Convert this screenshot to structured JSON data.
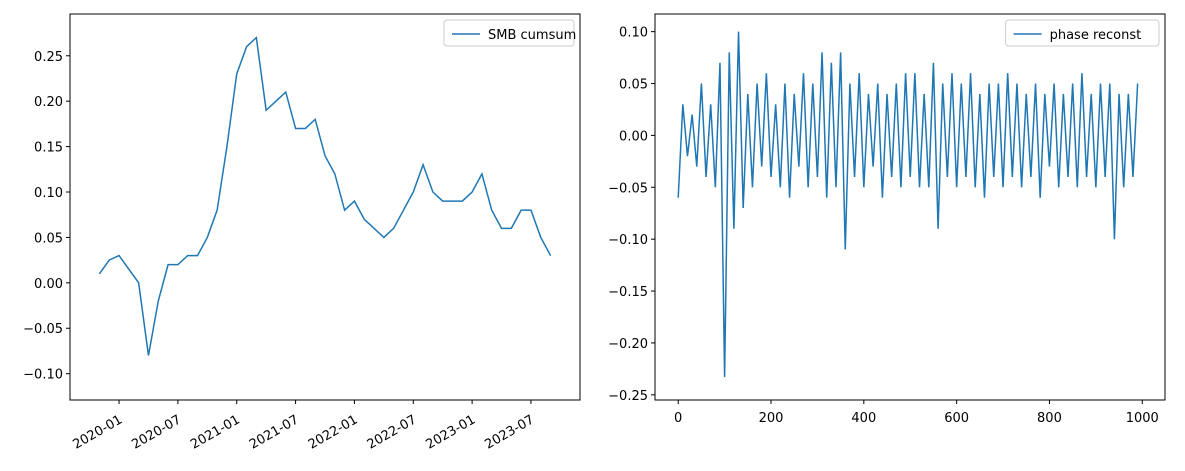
{
  "chart_data": [
    {
      "type": "line",
      "x_kind": "month",
      "x": [
        "2019-11",
        "2019-12",
        "2020-01",
        "2020-02",
        "2020-03",
        "2020-04",
        "2020-05",
        "2020-06",
        "2020-07",
        "2020-08",
        "2020-09",
        "2020-10",
        "2020-11",
        "2020-12",
        "2021-01",
        "2021-02",
        "2021-03",
        "2021-04",
        "2021-05",
        "2021-06",
        "2021-07",
        "2021-08",
        "2021-09",
        "2021-10",
        "2021-11",
        "2021-12",
        "2022-01",
        "2022-02",
        "2022-03",
        "2022-04",
        "2022-05",
        "2022-06",
        "2022-07",
        "2022-08",
        "2022-09",
        "2022-10",
        "2022-11",
        "2022-12",
        "2023-01",
        "2023-02",
        "2023-03",
        "2023-04",
        "2023-05",
        "2023-06",
        "2023-07",
        "2023-08",
        "2023-09"
      ],
      "series": [
        {
          "name": "SMB cumsum",
          "color": "#1f77b4",
          "values": [
            0.01,
            0.025,
            0.03,
            0.015,
            0.0,
            -0.08,
            -0.02,
            0.02,
            0.02,
            0.03,
            0.03,
            0.05,
            0.08,
            0.15,
            0.23,
            0.26,
            0.27,
            0.19,
            0.2,
            0.21,
            0.17,
            0.17,
            0.18,
            0.14,
            0.12,
            0.08,
            0.09,
            0.07,
            0.06,
            0.05,
            0.06,
            0.08,
            0.1,
            0.13,
            0.1,
            0.09,
            0.09,
            0.09,
            0.1,
            0.12,
            0.08,
            0.06,
            0.06,
            0.08,
            0.08,
            0.05,
            0.03
          ]
        }
      ],
      "xlim": [
        "2019-08",
        "2023-12"
      ],
      "xticks": [
        "2020-01",
        "2020-07",
        "2021-01",
        "2021-07",
        "2022-01",
        "2022-07",
        "2023-01",
        "2023-07"
      ],
      "ylim": [
        -0.129,
        0.296
      ],
      "yticks": [
        {
          "value": -0.1,
          "label": "−0.10"
        },
        {
          "value": -0.05,
          "label": "−0.05"
        },
        {
          "value": 0,
          "label": "0.00"
        },
        {
          "value": 0.05,
          "label": "0.05"
        },
        {
          "value": 0.1,
          "label": "0.10"
        },
        {
          "value": 0.15,
          "label": "0.15"
        },
        {
          "value": 0.2,
          "label": "0.20"
        },
        {
          "value": 0.25,
          "label": "0.25"
        }
      ],
      "legend": "upper right"
    },
    {
      "type": "line",
      "x_kind": "number",
      "x": [
        0,
        10,
        20,
        30,
        40,
        50,
        60,
        70,
        80,
        90,
        100,
        110,
        120,
        130,
        140,
        150,
        160,
        170,
        180,
        190,
        200,
        210,
        220,
        230,
        240,
        250,
        260,
        270,
        280,
        290,
        300,
        310,
        320,
        330,
        340,
        350,
        360,
        370,
        380,
        390,
        400,
        410,
        420,
        430,
        440,
        450,
        460,
        470,
        480,
        490,
        500,
        510,
        520,
        530,
        540,
        550,
        560,
        570,
        580,
        590,
        600,
        610,
        620,
        630,
        640,
        650,
        660,
        670,
        680,
        690,
        700,
        710,
        720,
        730,
        740,
        750,
        760,
        770,
        780,
        790,
        800,
        810,
        820,
        830,
        840,
        850,
        860,
        870,
        880,
        890,
        900,
        910,
        920,
        930,
        940,
        950,
        960,
        970,
        980,
        990
      ],
      "series": [
        {
          "name": "phase reconst",
          "color": "#1f77b4",
          "values": [
            -0.06,
            0.03,
            -0.02,
            0.02,
            -0.03,
            0.05,
            -0.04,
            0.03,
            -0.05,
            0.07,
            -0.233,
            0.08,
            -0.09,
            0.1,
            -0.07,
            0.04,
            -0.05,
            0.05,
            -0.03,
            0.06,
            -0.04,
            0.03,
            -0.05,
            0.05,
            -0.06,
            0.04,
            -0.03,
            0.06,
            -0.05,
            0.05,
            -0.04,
            0.08,
            -0.06,
            0.07,
            -0.05,
            0.08,
            -0.11,
            0.05,
            -0.04,
            0.06,
            -0.05,
            0.04,
            -0.03,
            0.05,
            -0.06,
            0.04,
            -0.04,
            0.05,
            -0.05,
            0.06,
            -0.04,
            0.06,
            -0.05,
            0.04,
            -0.05,
            0.07,
            -0.09,
            0.05,
            -0.04,
            0.06,
            -0.05,
            0.05,
            -0.04,
            0.06,
            -0.05,
            0.04,
            -0.06,
            0.05,
            -0.04,
            0.05,
            -0.05,
            0.06,
            -0.04,
            0.05,
            -0.05,
            0.04,
            -0.04,
            0.05,
            -0.06,
            0.04,
            -0.03,
            0.05,
            -0.05,
            0.04,
            -0.04,
            0.05,
            -0.05,
            0.06,
            -0.04,
            0.04,
            -0.05,
            0.05,
            -0.04,
            0.05,
            -0.1,
            0.04,
            -0.05,
            0.04,
            -0.04,
            0.05
          ]
        }
      ],
      "xlim": [
        -50,
        1049
      ],
      "xticks": [
        0,
        200,
        400,
        600,
        800,
        1000
      ],
      "ylim": [
        -0.255,
        0.117
      ],
      "yticks": [
        {
          "value": -0.25,
          "label": "−0.25"
        },
        {
          "value": -0.2,
          "label": "−0.20"
        },
        {
          "value": -0.15,
          "label": "−0.15"
        },
        {
          "value": -0.1,
          "label": "−0.10"
        },
        {
          "value": -0.05,
          "label": "−0.05"
        },
        {
          "value": 0,
          "label": "0.00"
        },
        {
          "value": 0.05,
          "label": "0.05"
        },
        {
          "value": 0.1,
          "label": "0.10"
        }
      ],
      "legend": "upper right"
    }
  ]
}
